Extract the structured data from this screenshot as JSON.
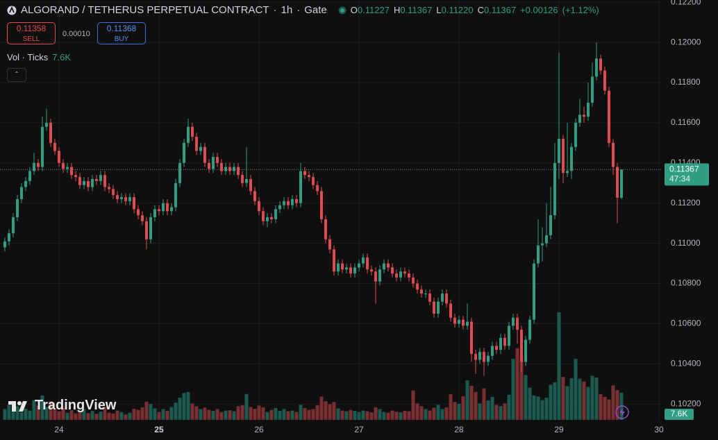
{
  "chart_data": {
    "type": "candlestick",
    "title": "ALGORAND / TETHERUS PERPETUAL CONTRACT",
    "interval": "1h",
    "exchange": "Gate",
    "separator": "·",
    "ohlc_legend": [
      {
        "label": "O",
        "value": "0.11227"
      },
      {
        "label": "H",
        "value": "0.11367"
      },
      {
        "label": "L",
        "value": "0.11220"
      },
      {
        "label": "C",
        "value": "0.11367"
      }
    ],
    "change": "+0.00126",
    "change_pct": "(+1.12%)",
    "sell": {
      "price": "0.11358",
      "label": "SELL"
    },
    "spread": "0.00010",
    "buy": {
      "price": "0.11368",
      "label": "BUY"
    },
    "volume_legend": "Vol · Ticks",
    "last_volume_label": "7.6K",
    "countdown": "47:34",
    "brand": "TradingView",
    "up_color": "#2f9e84",
    "down_color": "#e04b52",
    "up_volume_color": "#1d5a4f",
    "down_volume_color": "#7a2f33",
    "grid": true,
    "xlim": [
      23.4097,
      30.0278
    ],
    "xticks": [
      24,
      25,
      26,
      27,
      28,
      29,
      30
    ],
    "ylim": [
      0.10118,
      0.12211
    ],
    "yticks": [
      {
        "value": 0.102,
        "label": "0.10200"
      },
      {
        "value": 0.104,
        "label": "0.10400"
      },
      {
        "value": 0.106,
        "label": "0.10600"
      },
      {
        "value": 0.108,
        "label": "0.10800"
      },
      {
        "value": 0.11,
        "label": "0.11000"
      },
      {
        "value": 0.112,
        "label": "0.11200"
      },
      {
        "value": 0.114,
        "label": "0.11400"
      },
      {
        "value": 0.116,
        "label": "0.11600"
      },
      {
        "value": 0.118,
        "label": "0.11800"
      },
      {
        "value": 0.12,
        "label": "0.12000"
      },
      {
        "value": 0.122,
        "label": "0.12200"
      }
    ],
    "x": [
      23.4583,
      23.5,
      23.5417,
      23.5833,
      23.625,
      23.6667,
      23.7083,
      23.75,
      23.7917,
      23.8333,
      23.875,
      23.9167,
      23.9583,
      24,
      24.0417,
      24.0833,
      24.125,
      24.1667,
      24.2083,
      24.25,
      24.2917,
      24.3333,
      24.375,
      24.4167,
      24.4583,
      24.5,
      24.5417,
      24.5833,
      24.625,
      24.6667,
      24.7083,
      24.75,
      24.7917,
      24.8333,
      24.875,
      24.9167,
      24.9583,
      25,
      25.0417,
      25.0833,
      25.125,
      25.1667,
      25.2083,
      25.25,
      25.2917,
      25.3333,
      25.375,
      25.4167,
      25.4583,
      25.5,
      25.5417,
      25.5833,
      25.625,
      25.6667,
      25.7083,
      25.75,
      25.7917,
      25.8333,
      25.875,
      25.9167,
      25.9583,
      26,
      26.0417,
      26.0833,
      26.125,
      26.1667,
      26.2083,
      26.25,
      26.2917,
      26.3333,
      26.375,
      26.4167,
      26.4583,
      26.5,
      26.5417,
      26.5833,
      26.625,
      26.6667,
      26.7083,
      26.75,
      26.7917,
      26.8333,
      26.875,
      26.9167,
      26.9583,
      27,
      27.0417,
      27.0833,
      27.125,
      27.1667,
      27.2083,
      27.25,
      27.2917,
      27.3333,
      27.375,
      27.4167,
      27.4583,
      27.5,
      27.5417,
      27.5833,
      27.625,
      27.6667,
      27.7083,
      27.75,
      27.7917,
      27.8333,
      27.875,
      27.9167,
      27.9583,
      28,
      28.0417,
      28.0833,
      28.125,
      28.1667,
      28.2083,
      28.25,
      28.2917,
      28.3333,
      28.375,
      28.4167,
      28.4583,
      28.5,
      28.5417,
      28.5833,
      28.625,
      28.6667,
      28.7083,
      28.75,
      28.7917,
      28.8333,
      28.875,
      28.9167,
      28.9583,
      29,
      29.0417,
      29.0833,
      29.125,
      29.1667,
      29.2083,
      29.25,
      29.2917,
      29.3333,
      29.375,
      29.4167,
      29.4583,
      29.5,
      29.5417,
      29.5833,
      29.625
    ],
    "open": [
      0.1098,
      0.1101,
      0.1105,
      0.1113,
      0.1122,
      0.1128,
      0.1131,
      0.1136,
      0.114,
      0.1138,
      0.1158,
      0.116,
      0.115,
      0.1146,
      0.114,
      0.1137,
      0.1138,
      0.1134,
      0.1133,
      0.1129,
      0.1131,
      0.1128,
      0.1132,
      0.1131,
      0.1134,
      0.1128,
      0.1127,
      0.1124,
      0.1122,
      0.1123,
      0.1121,
      0.1123,
      0.1117,
      0.1114,
      0.1111,
      0.1102,
      0.1113,
      0.1117,
      0.1116,
      0.112,
      0.1116,
      0.1118,
      0.113,
      0.114,
      0.115,
      0.1158,
      0.1153,
      0.1146,
      0.1148,
      0.114,
      0.1137,
      0.1143,
      0.114,
      0.1136,
      0.1138,
      0.1136,
      0.1138,
      0.1134,
      0.113,
      0.1132,
      0.1126,
      0.1121,
      0.1116,
      0.1111,
      0.1113,
      0.1112,
      0.1117,
      0.1119,
      0.1121,
      0.1119,
      0.1122,
      0.112,
      0.1136,
      0.1134,
      0.1133,
      0.1129,
      0.1126,
      0.1112,
      0.1102,
      0.1097,
      0.1086,
      0.109,
      0.1087,
      0.1088,
      0.1085,
      0.1088,
      0.109,
      0.1093,
      0.1087,
      0.1086,
      0.1081,
      0.1087,
      0.109,
      0.1088,
      0.1085,
      0.1083,
      0.1086,
      0.1085,
      0.1083,
      0.108,
      0.1077,
      0.1075,
      0.1075,
      0.1071,
      0.1065,
      0.1071,
      0.1075,
      0.107,
      0.1063,
      0.106,
      0.1062,
      0.1059,
      0.1061,
      0.1045,
      0.1042,
      0.1046,
      0.1041,
      0.1044,
      0.1049,
      0.1047,
      0.1053,
      0.1049,
      0.1059,
      0.1063,
      0.1057,
      0.1041,
      0.1052,
      0.1062,
      0.109,
      0.1099,
      0.11,
      0.1104,
      0.1114,
      0.114,
      0.1152,
      0.1135,
      0.1136,
      0.1148,
      0.116,
      0.1164,
      0.1163,
      0.117,
      0.1183,
      0.1192,
      0.1186,
      0.1176,
      0.115,
      0.1138,
      0.11227
    ],
    "high": [
      0.1103,
      0.1107,
      0.1115,
      0.1124,
      0.113,
      0.1133,
      0.1138,
      0.1145,
      0.1142,
      0.1163,
      0.1167,
      0.1162,
      0.1152,
      0.1148,
      0.1142,
      0.114,
      0.114,
      0.1136,
      0.1135,
      0.1133,
      0.1133,
      0.1134,
      0.1134,
      0.1136,
      0.1136,
      0.113,
      0.1129,
      0.1126,
      0.1125,
      0.1125,
      0.1125,
      0.1125,
      0.1119,
      0.1116,
      0.1113,
      0.1115,
      0.1119,
      0.1119,
      0.1122,
      0.1122,
      0.112,
      0.1132,
      0.1142,
      0.1152,
      0.1162,
      0.116,
      0.1155,
      0.115,
      0.115,
      0.1142,
      0.1145,
      0.1145,
      0.1142,
      0.114,
      0.114,
      0.114,
      0.114,
      0.1136,
      0.1148,
      0.1134,
      0.1128,
      0.1123,
      0.1118,
      0.1115,
      0.1115,
      0.1119,
      0.1121,
      0.1123,
      0.1123,
      0.1124,
      0.1124,
      0.114,
      0.1138,
      0.1136,
      0.1135,
      0.1131,
      0.1128,
      0.1114,
      0.1104,
      0.1099,
      0.1092,
      0.1092,
      0.109,
      0.109,
      0.109,
      0.1092,
      0.1095,
      0.1095,
      0.1089,
      0.1088,
      0.1089,
      0.1092,
      0.1092,
      0.109,
      0.1087,
      0.1088,
      0.1088,
      0.1087,
      0.1085,
      0.1082,
      0.1079,
      0.1077,
      0.1077,
      0.1073,
      0.1073,
      0.1077,
      0.1077,
      0.1072,
      0.1065,
      0.1064,
      0.1064,
      0.107,
      0.1063,
      0.1047,
      0.1048,
      0.1048,
      0.1046,
      0.1051,
      0.1051,
      0.1055,
      0.1055,
      0.1061,
      0.1065,
      0.1065,
      0.1059,
      0.1054,
      0.1064,
      0.1092,
      0.1112,
      0.1108,
      0.112,
      0.1128,
      0.115,
      0.1195,
      0.1154,
      0.116,
      0.115,
      0.1162,
      0.1172,
      0.1168,
      0.118,
      0.119,
      0.12,
      0.1194,
      0.1188,
      0.1178,
      0.1152,
      0.114,
      0.11367
    ],
    "low": [
      0.1096,
      0.1099,
      0.1103,
      0.1111,
      0.112,
      0.1126,
      0.1129,
      0.1134,
      0.1136,
      0.1136,
      0.1156,
      0.1148,
      0.1144,
      0.1138,
      0.1135,
      0.1135,
      0.1132,
      0.1131,
      0.1127,
      0.1127,
      0.1126,
      0.1126,
      0.1129,
      0.1129,
      0.1126,
      0.1125,
      0.1122,
      0.112,
      0.112,
      0.1119,
      0.1119,
      0.1115,
      0.1112,
      0.1109,
      0.1097,
      0.11,
      0.1111,
      0.1114,
      0.1114,
      0.1114,
      0.1114,
      0.1116,
      0.1128,
      0.1138,
      0.1148,
      0.1151,
      0.1144,
      0.1144,
      0.1138,
      0.1135,
      0.1135,
      0.1138,
      0.1134,
      0.1134,
      0.1134,
      0.1134,
      0.1132,
      0.1128,
      0.1128,
      0.1124,
      0.1119,
      0.1114,
      0.1109,
      0.1108,
      0.111,
      0.111,
      0.1115,
      0.1117,
      0.1117,
      0.1117,
      0.1118,
      0.1118,
      0.1132,
      0.1131,
      0.1127,
      0.1124,
      0.111,
      0.11,
      0.1095,
      0.1084,
      0.1084,
      0.1085,
      0.1085,
      0.1083,
      0.1083,
      0.1086,
      0.1088,
      0.1085,
      0.1084,
      0.107,
      0.1079,
      0.1085,
      0.1086,
      0.1083,
      0.1081,
      0.1081,
      0.1083,
      0.1081,
      0.1078,
      0.1075,
      0.1073,
      0.1073,
      0.1069,
      0.1063,
      0.1063,
      0.1069,
      0.1068,
      0.1061,
      0.1058,
      0.1058,
      0.1057,
      0.1057,
      0.1041,
      0.1035,
      0.104,
      0.1034,
      0.1039,
      0.1042,
      0.1045,
      0.1045,
      0.1047,
      0.1047,
      0.1057,
      0.105,
      0.1036,
      0.1039,
      0.105,
      0.106,
      0.1088,
      0.1091,
      0.1098,
      0.1102,
      0.1112,
      0.1132,
      0.113,
      0.1133,
      0.1132,
      0.1146,
      0.1158,
      0.116,
      0.1161,
      0.1168,
      0.1181,
      0.1184,
      0.1174,
      0.1148,
      0.1134,
      0.111,
      0.1122
    ],
    "close": [
      0.1101,
      0.1105,
      0.1113,
      0.1122,
      0.1128,
      0.1131,
      0.1136,
      0.114,
      0.1138,
      0.1158,
      0.116,
      0.115,
      0.1146,
      0.114,
      0.1137,
      0.1138,
      0.1134,
      0.1133,
      0.1129,
      0.1131,
      0.1128,
      0.1132,
      0.1131,
      0.1134,
      0.1128,
      0.1127,
      0.1124,
      0.1122,
      0.1123,
      0.1121,
      0.1123,
      0.1117,
      0.1114,
      0.1111,
      0.1102,
      0.1113,
      0.1117,
      0.1116,
      0.112,
      0.1116,
      0.1118,
      0.113,
      0.114,
      0.115,
      0.1158,
      0.1153,
      0.1146,
      0.1148,
      0.114,
      0.1137,
      0.1143,
      0.114,
      0.1136,
      0.1138,
      0.1136,
      0.1138,
      0.1134,
      0.113,
      0.1132,
      0.1126,
      0.1121,
      0.1116,
      0.1111,
      0.1113,
      0.1112,
      0.1117,
      0.1119,
      0.1121,
      0.1119,
      0.1122,
      0.112,
      0.1136,
      0.1134,
      0.1133,
      0.1129,
      0.1126,
      0.1112,
      0.1102,
      0.1097,
      0.1086,
      0.109,
      0.1087,
      0.1088,
      0.1085,
      0.1088,
      0.109,
      0.1093,
      0.1087,
      0.1086,
      0.1081,
      0.1087,
      0.109,
      0.1088,
      0.1085,
      0.1083,
      0.1086,
      0.1085,
      0.1083,
      0.108,
      0.1077,
      0.1075,
      0.1075,
      0.1071,
      0.1065,
      0.1071,
      0.1075,
      0.107,
      0.1063,
      0.106,
      0.1062,
      0.1059,
      0.1061,
      0.1045,
      0.1042,
      0.1046,
      0.1041,
      0.1044,
      0.1049,
      0.1047,
      0.1053,
      0.1049,
      0.1059,
      0.1063,
      0.1057,
      0.1041,
      0.1052,
      0.1062,
      0.109,
      0.1099,
      0.11,
      0.1104,
      0.1114,
      0.114,
      0.1152,
      0.1135,
      0.1136,
      0.1148,
      0.116,
      0.1164,
      0.1163,
      0.117,
      0.1183,
      0.1192,
      0.1186,
      0.1176,
      0.115,
      0.1138,
      0.11227,
      0.11367
    ],
    "volume": [
      3000,
      4200,
      2500,
      3800,
      2200,
      3100,
      2600,
      5500,
      4000,
      6800,
      3600,
      5200,
      2900,
      2400,
      3300,
      2000,
      2700,
      1800,
      2200,
      3000,
      1900,
      2500,
      1700,
      2300,
      3600,
      2000,
      1800,
      2600,
      2200,
      1500,
      2000,
      3100,
      2800,
      3500,
      5100,
      4400,
      3200,
      2200,
      3000,
      2500,
      3600,
      4800,
      6200,
      7500,
      7800,
      4600,
      3800,
      3000,
      3400,
      2800,
      2500,
      3000,
      2200,
      2600,
      2700,
      2400,
      3800,
      4100,
      7200,
      3600,
      3100,
      4000,
      3500,
      2200,
      2800,
      3300,
      2500,
      3000,
      2400,
      2600,
      2200,
      4200,
      3300,
      2800,
      3000,
      4100,
      6500,
      5200,
      4400,
      5000,
      3200,
      2600,
      2400,
      2800,
      2500,
      2200,
      2600,
      2400,
      2100,
      3500,
      3000,
      2200,
      2000,
      2600,
      2300,
      2100,
      2500,
      2400,
      8200,
      4600,
      3800,
      3000,
      2600,
      3400,
      4200,
      3000,
      3500,
      7200,
      5000,
      4500,
      6600,
      11000,
      9500,
      7800,
      4600,
      8800,
      5400,
      6400,
      4200,
      3800,
      4600,
      7000,
      17000,
      20000,
      18000,
      12500,
      9000,
      6800,
      6500,
      5500,
      6200,
      9800,
      10500,
      30000,
      12000,
      9400,
      11600,
      17000,
      11500,
      10700,
      9200,
      12300,
      11800,
      7200,
      6400,
      5700,
      9600,
      8300,
      7600
    ]
  }
}
